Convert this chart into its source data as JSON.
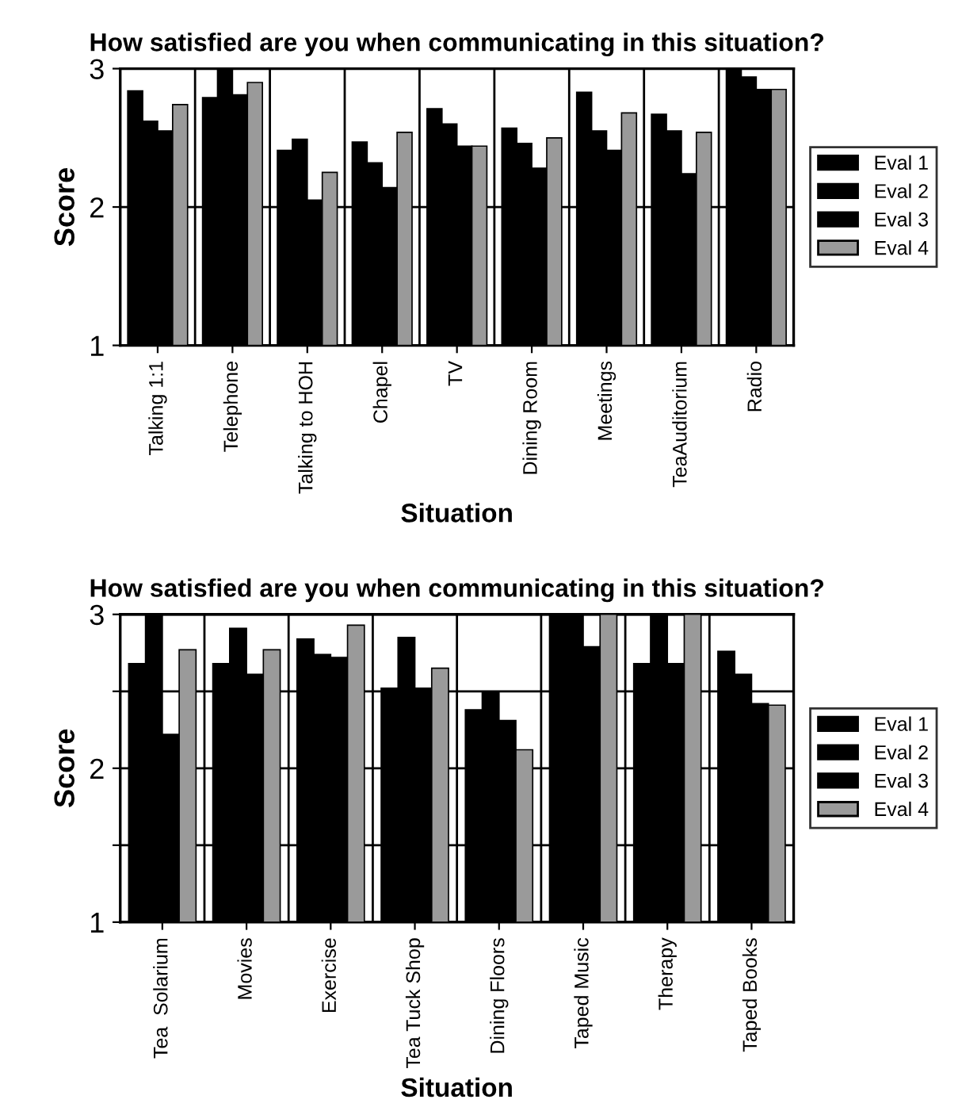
{
  "chart_data": [
    {
      "type": "bar",
      "title": "How satisfied are you when communicating in this situation?",
      "xlabel": "Situation",
      "ylabel": "Score",
      "categories": [
        "Talking 1:1",
        "Telephone",
        "Talking to HOH",
        "Chapel",
        "TV",
        "Dining Room",
        "Meetings",
        "TeaAuditorium",
        "Radio"
      ],
      "series": [
        {
          "name": "Eval 1",
          "color": "#000000",
          "values": [
            2.84,
            2.79,
            2.41,
            2.47,
            2.71,
            2.57,
            2.83,
            2.67,
            3.0
          ]
        },
        {
          "name": "Eval 2",
          "color": "#000000",
          "values": [
            2.62,
            3.0,
            2.49,
            2.32,
            2.6,
            2.46,
            2.55,
            2.55,
            2.94
          ]
        },
        {
          "name": "Eval 3",
          "color": "#000000",
          "values": [
            2.55,
            2.81,
            2.05,
            2.14,
            2.44,
            2.28,
            2.41,
            2.24,
            2.85
          ]
        },
        {
          "name": "Eval 4",
          "color": "#9a9a9a",
          "values": [
            2.74,
            2.9,
            2.25,
            2.54,
            2.44,
            2.5,
            2.68,
            2.54,
            2.85
          ]
        }
      ],
      "ylim": [
        1,
        3
      ],
      "yticks": [
        1,
        2,
        3
      ],
      "grid": true,
      "legend": "right"
    },
    {
      "type": "bar",
      "title": "How satisfied are you when communicating in this situation?",
      "xlabel": "Situation",
      "ylabel": "Score",
      "categories": [
        "Tea  Solarium",
        "Movies",
        "Exercise",
        "Tea Tuck Shop",
        "Dining Floors",
        "Taped Music",
        "Therapy",
        "Taped Books"
      ],
      "series": [
        {
          "name": "Eval 1",
          "color": "#000000",
          "values": [
            2.68,
            2.68,
            2.84,
            2.52,
            2.38,
            3.0,
            2.68,
            2.76
          ]
        },
        {
          "name": "Eval 2",
          "color": "#000000",
          "values": [
            3.0,
            2.91,
            2.74,
            2.85,
            2.5,
            3.0,
            3.0,
            2.61
          ]
        },
        {
          "name": "Eval 3",
          "color": "#000000",
          "values": [
            2.22,
            2.61,
            2.72,
            2.52,
            2.31,
            2.79,
            2.68,
            2.42
          ]
        },
        {
          "name": "Eval 4",
          "color": "#9a9a9a",
          "values": [
            2.77,
            2.77,
            2.93,
            2.65,
            2.12,
            3.0,
            3.0,
            2.41
          ]
        }
      ],
      "ylim": [
        1,
        3
      ],
      "yticks": [
        1,
        {
          "value": 1.5,
          "label": null
        },
        2,
        {
          "value": 2.5,
          "label": null
        },
        3
      ],
      "grid": true,
      "legend": "right"
    }
  ]
}
